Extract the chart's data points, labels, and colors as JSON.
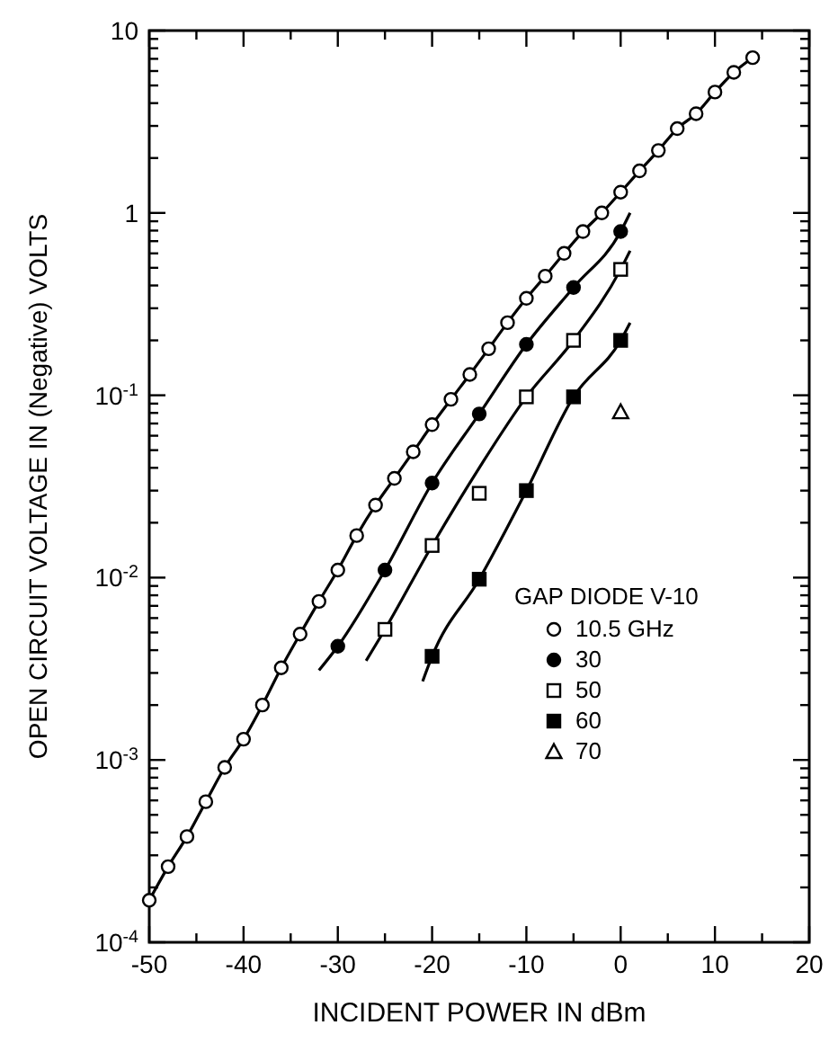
{
  "chart_data": {
    "type": "scatter",
    "xlabel": "INCIDENT POWER IN dBm",
    "ylabel": "OPEN CIRCUIT VOLTAGE IN (Negative) VOLTS",
    "legend_title": "GAP DIODE V-10",
    "legend": "bottom right",
    "log": "y",
    "grid": false,
    "xlim": [
      -50,
      20
    ],
    "ylim": [
      0.0001,
      10
    ],
    "xticks": [
      -50,
      {
        "value": -45,
        "label": null
      },
      -40,
      {
        "value": -35,
        "label": null
      },
      -30,
      {
        "value": -25,
        "label": null
      },
      -20,
      {
        "value": -15,
        "label": null
      },
      -10,
      {
        "value": -5,
        "label": null
      },
      0,
      {
        "value": 5,
        "label": null
      },
      10,
      {
        "value": 15,
        "label": null
      },
      20
    ],
    "yticks": [
      {
        "value": 0.0001,
        "label": "10$^{-4}$"
      },
      {
        "value": 0.0002,
        "label": null
      },
      {
        "value": 0.0003,
        "label": null
      },
      {
        "value": 0.0004,
        "label": null
      },
      {
        "value": 0.0005,
        "label": null
      },
      {
        "value": 0.0006,
        "label": null
      },
      {
        "value": 0.0007,
        "label": null
      },
      {
        "value": 0.0008,
        "label": null
      },
      {
        "value": 0.0009,
        "label": null
      },
      {
        "value": 0.001,
        "label": "10$^{-3}$"
      },
      {
        "value": 0.002,
        "label": null
      },
      {
        "value": 0.003,
        "label": null
      },
      {
        "value": 0.004,
        "label": null
      },
      {
        "value": 0.005,
        "label": null
      },
      {
        "value": 0.006,
        "label": null
      },
      {
        "value": 0.007,
        "label": null
      },
      {
        "value": 0.008,
        "label": null
      },
      {
        "value": 0.009,
        "label": null
      },
      {
        "value": 0.01,
        "label": "10$^{-2}$"
      },
      {
        "value": 0.02,
        "label": null
      },
      {
        "value": 0.03,
        "label": null
      },
      {
        "value": 0.04,
        "label": null
      },
      {
        "value": 0.05,
        "label": null
      },
      {
        "value": 0.06,
        "label": null
      },
      {
        "value": 0.07,
        "label": null
      },
      {
        "value": 0.08,
        "label": null
      },
      {
        "value": 0.09,
        "label": null
      },
      {
        "value": 0.1,
        "label": "10$^{-1}$"
      },
      {
        "value": 0.2,
        "label": null
      },
      {
        "value": 0.3,
        "label": null
      },
      {
        "value": 0.4,
        "label": null
      },
      {
        "value": 0.5,
        "label": null
      },
      {
        "value": 0.6,
        "label": null
      },
      {
        "value": 0.7,
        "label": null
      },
      {
        "value": 0.8,
        "label": null
      },
      {
        "value": 0.9,
        "label": null
      },
      1,
      {
        "value": 2,
        "label": null
      },
      {
        "value": 3,
        "label": null
      },
      {
        "value": 4,
        "label": null
      },
      {
        "value": 5,
        "label": null
      },
      {
        "value": 6,
        "label": null
      },
      {
        "value": 7,
        "label": null
      },
      {
        "value": 8,
        "label": null
      },
      {
        "value": 9,
        "label": null
      },
      10
    ],
    "series": [
      {
        "type": "line",
        "marker": "none",
        "color": "#000000",
        "x": [
          -50,
          -48,
          -46,
          -44,
          -42,
          -40,
          -38,
          -36,
          -34,
          -32,
          -30,
          -28,
          -26,
          -24,
          -22,
          -20,
          -18,
          -16,
          -14,
          -12,
          -10,
          -8,
          -6,
          -4,
          -2,
          0,
          2,
          4,
          6,
          8,
          10,
          12,
          14
        ],
        "values": [
          0.00017,
          0.00026,
          0.00038,
          0.00059,
          0.00091,
          0.0013,
          0.002,
          0.0032,
          0.0049,
          0.0074,
          0.011,
          0.017,
          0.025,
          0.035,
          0.049,
          0.069,
          0.095,
          0.13,
          0.18,
          0.25,
          0.34,
          0.45,
          0.6,
          0.79,
          1.0,
          1.3,
          1.7,
          2.2,
          2.9,
          3.5,
          4.6,
          5.9,
          7.1
        ]
      },
      {
        "type": "line",
        "marker": "none",
        "color": "#000000",
        "x": [
          -32,
          -30,
          -25,
          -20,
          -15,
          -10,
          -5,
          0,
          1
        ],
        "values": [
          0.0031,
          0.0042,
          0.011,
          0.033,
          0.079,
          0.19,
          0.39,
          0.79,
          1.0
        ]
      },
      {
        "type": "line",
        "marker": "none",
        "color": "#000000",
        "x": [
          -27,
          -25,
          -20,
          -15,
          -10,
          -5,
          0,
          1
        ],
        "values": [
          0.0035,
          0.0052,
          0.015,
          0.04,
          0.098,
          0.2,
          0.49,
          0.62
        ]
      },
      {
        "type": "line",
        "marker": "none",
        "color": "#000000",
        "x": [
          -21,
          -20,
          -15,
          -10,
          -5,
          0,
          1
        ],
        "values": [
          0.0027,
          0.0037,
          0.0098,
          0.03,
          0.098,
          0.2,
          0.25
        ]
      },
      {
        "name": "10.5 GHz",
        "marker": "circle",
        "color": "#ffffff",
        "x": [
          -50,
          -48,
          -46,
          -44,
          -42,
          -40,
          -38,
          -36,
          -34,
          -32,
          -30,
          -28,
          -26,
          -24,
          -22,
          -20,
          -18,
          -16,
          -14,
          -12,
          -10,
          -8,
          -6,
          -4,
          -2,
          0,
          2,
          4,
          6,
          8,
          10,
          12,
          14
        ],
        "values": [
          0.00017,
          0.00026,
          0.00038,
          0.00059,
          0.00091,
          0.0013,
          0.002,
          0.0032,
          0.0049,
          0.0074,
          0.011,
          0.017,
          0.025,
          0.035,
          0.049,
          0.069,
          0.095,
          0.13,
          0.18,
          0.25,
          0.34,
          0.45,
          0.6,
          0.79,
          1.0,
          1.3,
          1.7,
          2.2,
          2.9,
          3.5,
          4.6,
          5.9,
          7.1
        ]
      },
      {
        "name": "30",
        "marker": "circle",
        "color": "#000000",
        "x": [
          -30,
          -25,
          -20,
          -15,
          -10,
          -5,
          0
        ],
        "values": [
          0.0042,
          0.011,
          0.033,
          0.079,
          0.19,
          0.39,
          0.79
        ]
      },
      {
        "name": "50",
        "marker": "square",
        "color": "#ffffff",
        "x": [
          -25,
          -20,
          -15,
          -10,
          -5,
          0
        ],
        "values": [
          0.0052,
          0.015,
          0.029,
          0.098,
          0.2,
          0.49
        ]
      },
      {
        "name": "60",
        "marker": "square",
        "color": "#000000",
        "x": [
          -20,
          -15,
          -10,
          -5,
          0
        ],
        "values": [
          0.0037,
          0.0098,
          0.03,
          0.098,
          0.2
        ]
      },
      {
        "name": "70",
        "marker": "triangle",
        "color": "#ffffff",
        "x": [
          0
        ],
        "values": [
          0.081
        ]
      }
    ]
  }
}
